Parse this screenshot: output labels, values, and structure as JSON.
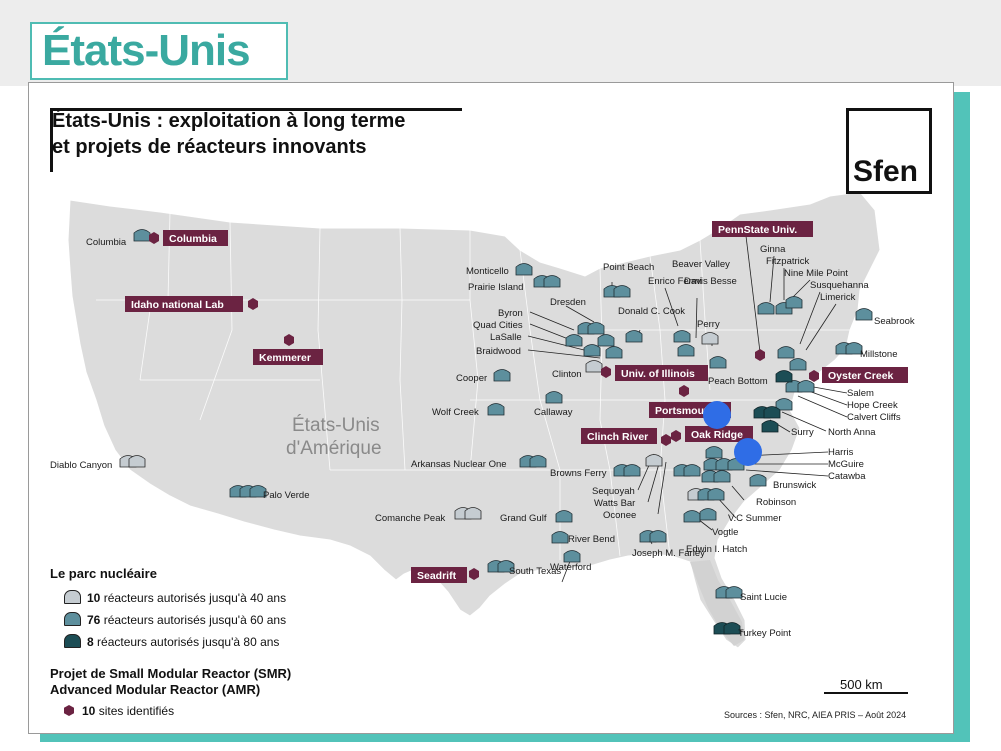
{
  "header": {
    "title": "États-Unis"
  },
  "map": {
    "title_line1": "États-Unis : exploitation à long terme",
    "title_line2": "et projets de réacteurs innovants",
    "logo": "Sfen",
    "region_line1": "États-Unis",
    "region_line2": "d'Amérique"
  },
  "smr_sites": [
    "Columbia",
    "Idaho national Lab",
    "Kemmerer",
    "PennState Univ.",
    "Univ. of Illinois",
    "Oyster Creek",
    "Portsmouth",
    "Oak Ridge",
    "Clinch River",
    "Seadrift"
  ],
  "plants": [
    "Columbia",
    "Diablo Canyon",
    "Palo Verde",
    "Monticello",
    "Prairie Island",
    "Point Beach",
    "Dresden",
    "Byron",
    "Quad Cities",
    "LaSalle",
    "Braidwood",
    "Clinton",
    "Cooper",
    "Wolf Creek",
    "Callaway",
    "Arkansas Nuclear One",
    "Comanche Peak",
    "Grand Gulf",
    "River Bend",
    "Waterford",
    "South Texas",
    "Enrico Fermi",
    "Davis Besse",
    "Donald C. Cook",
    "Perry",
    "Beaver Valley",
    "Ginna",
    "Fitzpatrick",
    "Nine Mile Point",
    "Susquehanna",
    "Limerick",
    "Seabrook",
    "Millstone",
    "Peach Bottom",
    "Salem",
    "Hope Creek",
    "Calvert Cliffs",
    "North Anna",
    "Surry",
    "Harris",
    "McGuire",
    "Catawba",
    "Brunswick",
    "Robinson",
    "V.C Summer",
    "Vogtle",
    "Edwin I. Hatch",
    "Browns Ferry",
    "Sequoyah",
    "Watts Bar",
    "Oconee",
    "Joseph M. Farley",
    "Saint Lucie",
    "Turkey Point"
  ],
  "legend": {
    "fleet_title": "Le parc nucléaire",
    "rows": [
      {
        "count": "10",
        "text": "réacteurs autorisés jusqu'à 40 ans",
        "color": "#c5ccd1"
      },
      {
        "count": "76",
        "text": "réacteurs autorisés jusqu'à 60 ans",
        "color": "#5d8f9d"
      },
      {
        "count": "8",
        "text": "réacteurs autorisés jusqu'à 80 ans",
        "color": "#1c4d55"
      }
    ],
    "project_line1": "Projet de Small Modular Reactor (SMR)",
    "project_line2": "Advanced Modular Reactor (AMR)",
    "sites_count": "10",
    "sites_text": "sites identifiés",
    "hex_color": "#6b2342"
  },
  "scale": "500 km",
  "sources": "Sources : Sfen, NRC, AIEA PRIS – Août 2024",
  "colors": {
    "accent": "#4fbcb3",
    "tag": "#6b2342",
    "map_fill": "#dcdcdc",
    "marker_blue": "#2f6de6"
  }
}
